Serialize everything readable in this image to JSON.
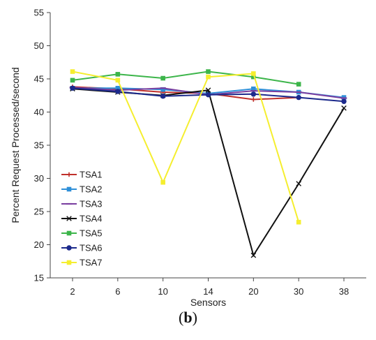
{
  "caption": {
    "open": "(",
    "letter": "b",
    "close": ")"
  },
  "chart_data": {
    "type": "line",
    "title": "",
    "xlabel": "Sensors",
    "ylabel": "Percent Request Processed/second",
    "categories": [
      "2",
      "6",
      "10",
      "14",
      "20",
      "30",
      "38"
    ],
    "ylim": [
      15,
      55
    ],
    "yticks": [
      15,
      20,
      25,
      30,
      35,
      40,
      45,
      50,
      55
    ],
    "grid": false,
    "legend_position": "lower-left",
    "series": [
      {
        "name": "TSA1",
        "color": "#c0302b",
        "marker": "plus",
        "values": [
          43.8,
          43.5,
          43.0,
          42.8,
          41.9,
          42.2,
          null
        ]
      },
      {
        "name": "TSA2",
        "color": "#2e8fd8",
        "marker": "square",
        "values": [
          43.6,
          43.6,
          43.4,
          42.8,
          43.5,
          43.0,
          42.2
        ]
      },
      {
        "name": "TSA3",
        "color": "#7a3fa0",
        "marker": "dash",
        "values": [
          43.7,
          43.3,
          43.6,
          42.6,
          43.2,
          43.0,
          42.1
        ]
      },
      {
        "name": "TSA4",
        "color": "#111111",
        "marker": "x",
        "values": [
          43.5,
          43.0,
          42.5,
          43.3,
          18.4,
          29.2,
          40.6
        ]
      },
      {
        "name": "TSA5",
        "color": "#3cb54a",
        "marker": "square",
        "values": [
          44.8,
          45.7,
          45.1,
          46.1,
          45.3,
          44.2,
          null
        ]
      },
      {
        "name": "TSA6",
        "color": "#1c2a8c",
        "marker": "circle",
        "values": [
          43.6,
          43.1,
          42.4,
          42.6,
          42.7,
          42.2,
          41.6
        ]
      },
      {
        "name": "TSA7",
        "color": "#f5ee2f",
        "marker": "square",
        "values": [
          46.1,
          44.8,
          29.4,
          45.3,
          45.8,
          23.4,
          null
        ]
      }
    ]
  }
}
